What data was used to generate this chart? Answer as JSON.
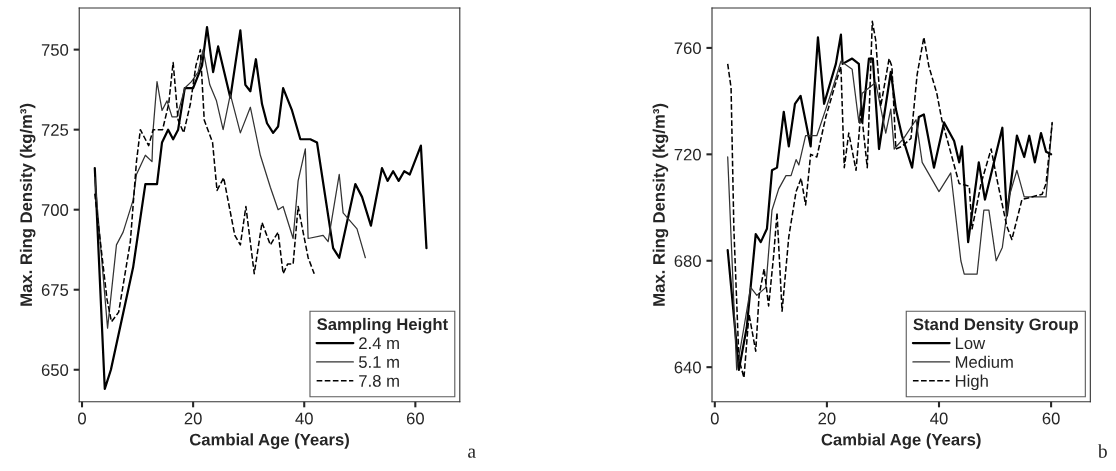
{
  "chart_data": [
    {
      "type": "line",
      "xlabel": "Cambial Age (Years)",
      "ylabel": "Max. Ring Density (kg/m³)",
      "legend_title": "Sampling Height",
      "legend": "bottom right",
      "grid": false,
      "xlim": [
        -0.5,
        68
      ],
      "ylim": [
        640,
        763
      ],
      "xticks": [
        0,
        20,
        40,
        60
      ],
      "yticks": [
        650,
        675,
        700,
        725,
        750
      ],
      "annotations": [
        "a"
      ],
      "series": [
        {
          "name": "2.4 m",
          "color": "#000000",
          "line_style": "solid",
          "x": [
            2.3,
            4.1,
            5.2,
            9.2,
            11.4,
            13.5,
            14.4,
            15.5,
            16.4,
            17.3,
            18.5,
            20,
            21.6,
            22.5,
            23.6,
            24.5,
            26.7,
            28.5,
            29.4,
            30.3,
            31.3,
            32.4,
            33.3,
            34.4,
            35.3,
            36.2,
            37.8,
            39.3,
            41.1,
            42.3,
            45.2,
            46.3,
            49.2,
            50.4,
            52,
            54,
            55,
            56,
            57,
            58,
            59,
            61,
            62
          ],
          "values": [
            713,
            644,
            650,
            682,
            708,
            708,
            721,
            725,
            722,
            725,
            738,
            738,
            745,
            757,
            743,
            751,
            735,
            756,
            739,
            737,
            747,
            733,
            727,
            724,
            726,
            738,
            731,
            722,
            722,
            721,
            688,
            685,
            708,
            704,
            695,
            713,
            709,
            712,
            709,
            712,
            711,
            720,
            688
          ]
        },
        {
          "name": "5.1 m",
          "color": "#333333",
          "line_style": "solid",
          "x": [
            2.3,
            4.6,
            6.2,
            7.4,
            9.2,
            9.8,
            11.4,
            12.6,
            12.8,
            13.5,
            14.4,
            15.3,
            16.2,
            17.1,
            18.5,
            19.7,
            20.9,
            21.8,
            23.0,
            24.2,
            25.4,
            26.7,
            28.5,
            30.3,
            32.1,
            33.9,
            35.3,
            36.2,
            38.0,
            38.9,
            40.2,
            40.7,
            43.4,
            44.3,
            46.3,
            47.0,
            49.5,
            51.0
          ],
          "values": [
            710,
            663,
            689,
            693,
            703,
            711,
            717,
            715,
            725,
            740,
            731,
            734,
            729,
            729,
            738,
            740,
            743,
            750,
            739,
            734,
            725,
            736,
            724,
            732,
            717,
            707,
            700,
            701,
            691,
            709,
            719,
            691,
            692,
            690,
            711,
            699,
            694,
            685
          ]
        },
        {
          "name": "7.8 m",
          "color": "#000000",
          "line_style": "dashed",
          "x": [
            2.3,
            4.5,
            5.3,
            6.6,
            8.7,
            9.8,
            10.5,
            12.0,
            12.8,
            14.5,
            15.6,
            16.4,
            17.3,
            18.3,
            19.5,
            20.5,
            21.3,
            22.0,
            23.5,
            24.3,
            25.5,
            27.5,
            28.5,
            29.5,
            31.0,
            32.4,
            33.9,
            35.3,
            36.2,
            37.0,
            38.0,
            38.9,
            40.7,
            41.8
          ],
          "values": [
            705,
            672,
            665,
            668,
            690,
            715,
            725,
            720,
            725,
            725,
            733,
            746,
            728,
            724,
            733,
            745,
            750,
            728,
            721,
            706,
            710,
            692,
            689,
            701,
            680,
            696,
            689,
            693,
            680,
            683,
            683,
            701,
            685,
            680
          ]
        }
      ]
    },
    {
      "type": "line",
      "xlabel": "Cambial Age (Years)",
      "ylabel": "Max. Ring Density (kg/m³)",
      "legend_title": "Stand Density Group",
      "legend": "bottom right",
      "grid": false,
      "xlim": [
        -0.5,
        67
      ],
      "ylim": [
        627,
        775
      ],
      "xticks": [
        0,
        20,
        40,
        60
      ],
      "yticks": [
        640,
        680,
        720,
        760
      ],
      "annotations": [
        "b"
      ],
      "series": [
        {
          "name": "Low",
          "color": "#000000",
          "line_style": "solid",
          "x": [
            2.3,
            4.3,
            5.7,
            7.3,
            8.2,
            9.3,
            10.2,
            11.1,
            12.3,
            13.2,
            14.3,
            15.3,
            17.1,
            18.4,
            19.5,
            21.6,
            22.5,
            22.8,
            24.5,
            25.7,
            26.3,
            27.5,
            28.2,
            29.3,
            31.4,
            32.3,
            33.4,
            35.2,
            36.4,
            37.3,
            39.1,
            40.9,
            42.7,
            43.6,
            44.1,
            45.2,
            47.1,
            48.2,
            51.3,
            52.1,
            53.9,
            55.2,
            56.1,
            57.1,
            58.2,
            59.1,
            60.0
          ],
          "values": [
            684,
            639,
            655,
            690,
            687,
            692,
            714,
            715,
            736,
            723,
            739,
            742,
            723,
            764,
            739,
            754,
            765,
            754,
            756,
            754,
            732,
            756,
            756,
            722,
            751,
            737,
            727,
            715,
            734,
            735,
            715,
            732,
            725,
            717,
            723,
            687,
            717,
            703,
            730,
            697,
            727,
            719,
            727,
            717,
            728,
            721,
            720
          ]
        },
        {
          "name": "Medium",
          "color": "#333333",
          "line_style": "solid",
          "x": [
            2.3,
            3.9,
            5.2,
            6.4,
            7.5,
            9.1,
            10.2,
            11.4,
            12.7,
            13.6,
            14.5,
            15.0,
            16.2,
            18.2,
            19.8,
            20.9,
            22.5,
            24.5,
            25.7,
            26.3,
            28.7,
            30.5,
            31.4,
            32.0,
            33.7,
            35.9,
            37.0,
            40.0,
            42.1,
            43.9,
            44.5,
            46.8,
            48.0,
            48.9,
            50.2,
            51.3,
            52.5,
            53.9,
            55.2,
            58.4,
            59.1,
            60.2
          ],
          "values": [
            719,
            639,
            655,
            670,
            667,
            670,
            699,
            707,
            712,
            712,
            718,
            716,
            727,
            727,
            737,
            744,
            755,
            752,
            732,
            743,
            747,
            728,
            737,
            722,
            726,
            733,
            717,
            706,
            713,
            680,
            675,
            675,
            699,
            699,
            680,
            685,
            704,
            714,
            704,
            704,
            704,
            732
          ]
        },
        {
          "name": "High",
          "color": "#000000",
          "line_style": "dashed",
          "x": [
            2.3,
            2.9,
            3.4,
            4.3,
            5.2,
            6.1,
            7.3,
            7.9,
            8.8,
            9.6,
            10.5,
            11.1,
            12.0,
            13.2,
            14.5,
            15.4,
            16.2,
            17.1,
            18.2,
            19.8,
            21.6,
            22.5,
            23.1,
            23.9,
            25.2,
            26.1,
            27.2,
            28.1,
            28.7,
            29.6,
            31.1,
            31.6,
            32.3,
            33.4,
            35.0,
            36.1,
            37.3,
            38.2,
            39.6,
            40.5,
            43.6,
            45.4,
            45.9,
            47.5,
            49.3,
            50.4,
            52.1,
            53.0,
            54.8,
            58.4,
            59.1,
            60.2
          ],
          "values": [
            754,
            745,
            692,
            643,
            636,
            660,
            646,
            667,
            677,
            663,
            682,
            698,
            661,
            689,
            706,
            711,
            701,
            720,
            719,
            734,
            747,
            753,
            715,
            728,
            714,
            737,
            715,
            770,
            763,
            738,
            756,
            753,
            722,
            723,
            726,
            750,
            764,
            753,
            743,
            733,
            709,
            708,
            692,
            709,
            722,
            710,
            693,
            688,
            703,
            705,
            709,
            732
          ]
        }
      ]
    }
  ]
}
